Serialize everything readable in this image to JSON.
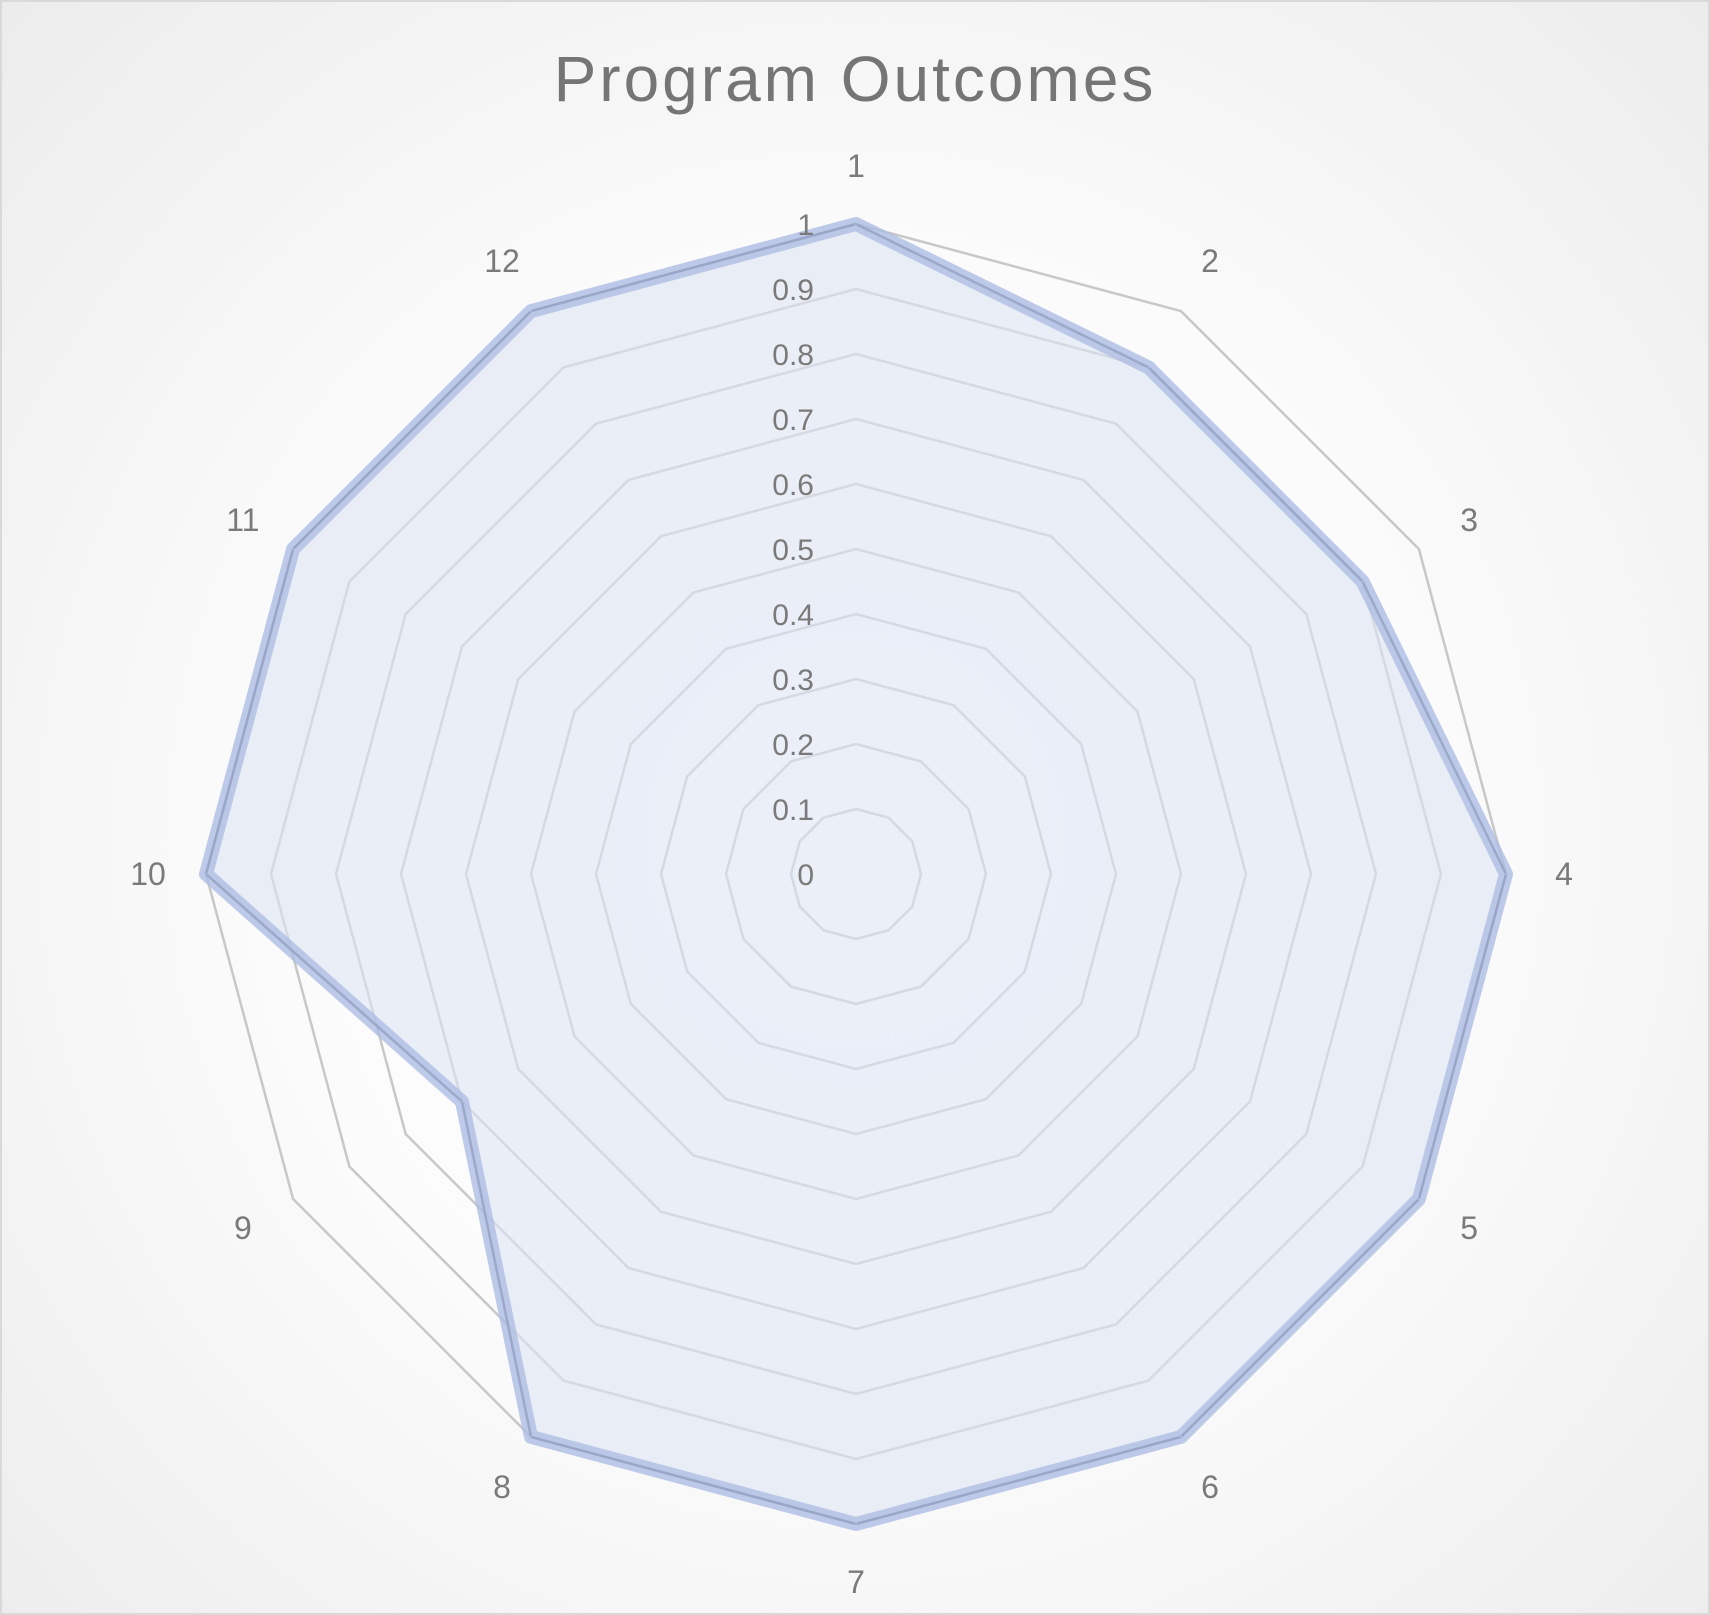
{
  "chart_data": {
    "type": "radar",
    "title": "Program Outcomes",
    "categories": [
      "1",
      "2",
      "3",
      "4",
      "5",
      "6",
      "7",
      "8",
      "9",
      "10",
      "11",
      "12"
    ],
    "series": [
      {
        "values": [
          1,
          0.9,
          0.9,
          1,
          1,
          1,
          1,
          1,
          0.7,
          1,
          1,
          1
        ]
      }
    ],
    "rlim": [
      0,
      1
    ],
    "ticks": [
      "0",
      "0.1",
      "0.2",
      "0.3",
      "0.4",
      "0.5",
      "0.6",
      "0.7",
      "0.8",
      "0.9",
      "1"
    ],
    "grid": true,
    "legend": "none",
    "colors": {
      "series_line": "#aebde3",
      "series_fill": "#dde4f4",
      "grid": "#c8c8c8",
      "text": "#7a7a7a"
    }
  }
}
